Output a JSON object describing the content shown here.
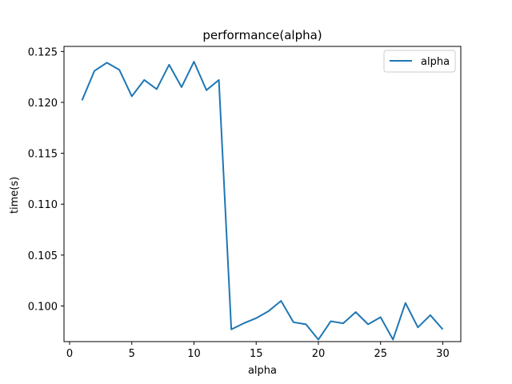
{
  "chart_data": {
    "type": "line",
    "title": "performance(alpha)",
    "xlabel": "alpha",
    "ylabel": "time(s)",
    "xlim": [
      -0.45,
      31.45
    ],
    "ylim": [
      0.0965,
      0.1255
    ],
    "xticks": [
      0,
      5,
      10,
      15,
      20,
      25,
      30
    ],
    "xtick_labels": [
      "0",
      "5",
      "10",
      "15",
      "20",
      "25",
      "30"
    ],
    "yticks": [
      0.1,
      0.105,
      0.11,
      0.115,
      0.12,
      0.125
    ],
    "ytick_labels": [
      "0.100",
      "0.105",
      "0.110",
      "0.115",
      "0.120",
      "0.125"
    ],
    "grid": false,
    "legend_position": "top-right",
    "series": [
      {
        "name": "alpha",
        "color": "#1f77b4",
        "x": [
          1,
          2,
          3,
          4,
          5,
          6,
          7,
          8,
          9,
          10,
          11,
          12,
          13,
          14,
          15,
          16,
          17,
          18,
          19,
          20,
          21,
          22,
          23,
          24,
          25,
          26,
          27,
          28,
          29,
          30
        ],
        "values": [
          0.1202,
          0.1231,
          0.1239,
          0.1232,
          0.1206,
          0.1222,
          0.1213,
          0.1237,
          0.1215,
          0.124,
          0.1212,
          0.1222,
          0.0977,
          0.0983,
          0.0988,
          0.0995,
          0.1005,
          0.0984,
          0.0982,
          0.0967,
          0.0985,
          0.0983,
          0.0994,
          0.0982,
          0.0989,
          0.0967,
          0.1003,
          0.0979,
          0.0991,
          0.0977
        ]
      }
    ]
  }
}
